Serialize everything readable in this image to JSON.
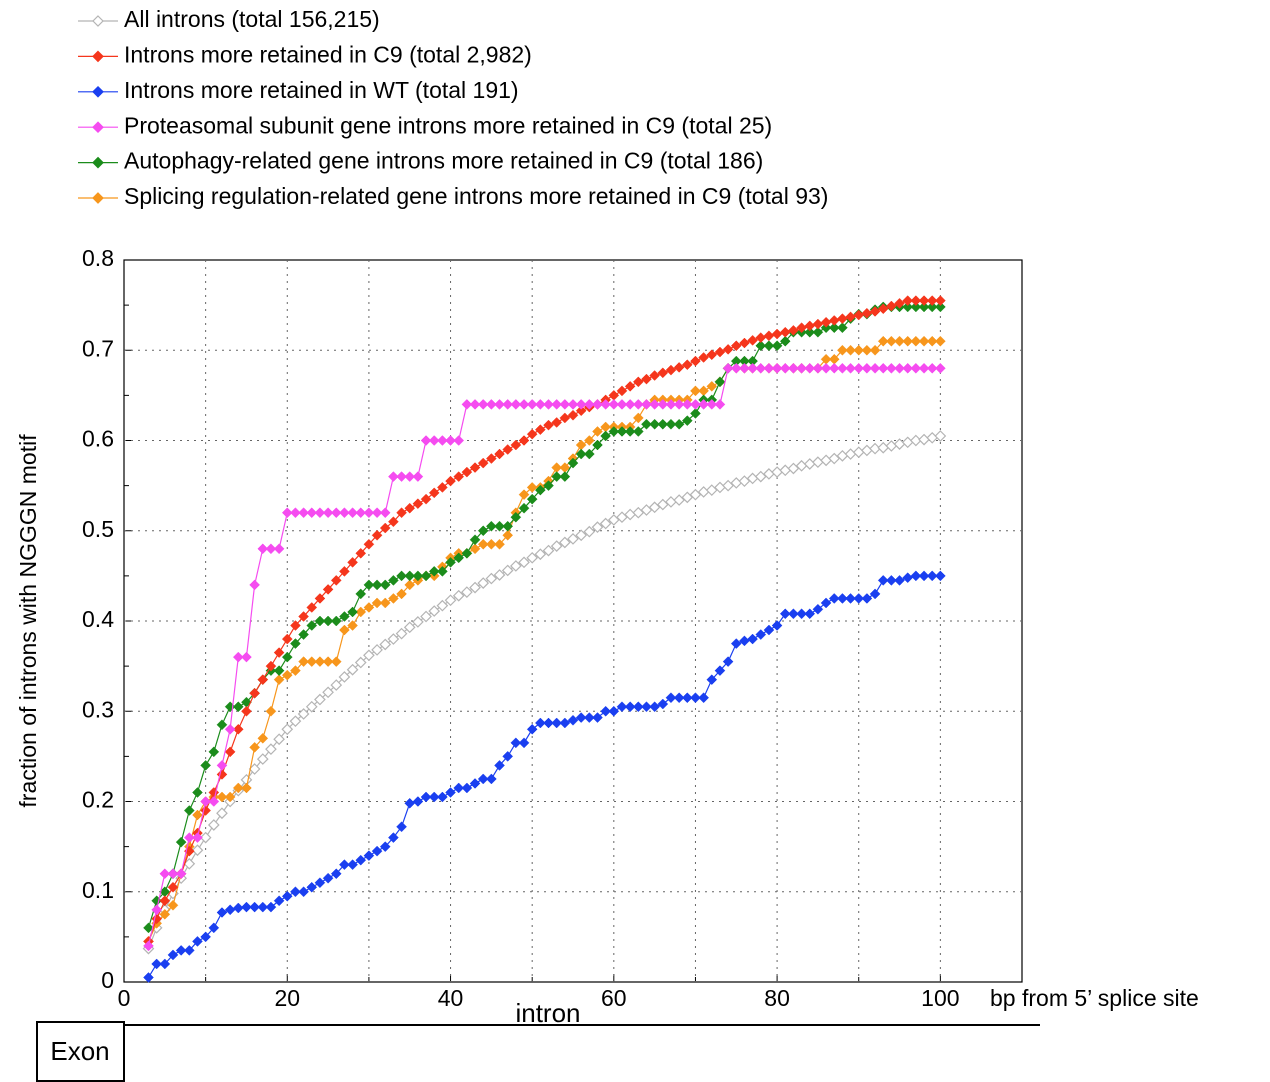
{
  "chart_data": {
    "type": "line",
    "legend": [
      "All introns (total 156,215)",
      "Introns more retained in C9 (total 2,982)",
      "Introns more retained in WT (total 191)",
      "Proteasomal subunit gene introns more retained in C9 (total 25)",
      "Autophagy-related gene introns more retained in C9 (total 186)",
      "Splicing regulation-related gene introns more retained in C9 (total 93)"
    ],
    "xlabel": "bp from 5’ splice site",
    "ylabel": "fraction of introns with NGGGN motif",
    "annotations": [
      "intron",
      "Exon"
    ],
    "xlim": [
      0,
      110
    ],
    "xticks": [
      0,
      20,
      40,
      60,
      80,
      100
    ],
    "ylim": [
      0,
      0.8
    ],
    "yticks": [
      0,
      0.1,
      0.2,
      0.3,
      0.4,
      0.5,
      0.6,
      0.7,
      0.8
    ],
    "grid": true,
    "x": [
      3,
      4,
      5,
      6,
      7,
      8,
      9,
      10,
      11,
      12,
      13,
      14,
      15,
      16,
      17,
      18,
      19,
      20,
      21,
      22,
      23,
      24,
      25,
      26,
      27,
      28,
      29,
      30,
      31,
      32,
      33,
      34,
      35,
      36,
      37,
      38,
      39,
      40,
      41,
      42,
      43,
      44,
      45,
      46,
      47,
      48,
      49,
      50,
      51,
      52,
      53,
      54,
      55,
      56,
      57,
      58,
      59,
      60,
      61,
      62,
      63,
      64,
      65,
      66,
      67,
      68,
      69,
      70,
      71,
      72,
      73,
      74,
      75,
      76,
      77,
      78,
      79,
      80,
      81,
      82,
      83,
      84,
      85,
      86,
      87,
      88,
      89,
      90,
      91,
      92,
      93,
      94,
      95,
      96,
      97,
      98,
      99,
      100
    ],
    "series": [
      {
        "name": "All introns (total 156,215)",
        "color": "#b4b4b4",
        "hollow": true,
        "values": [
          0.037,
          0.06,
          0.08,
          0.098,
          0.115,
          0.131,
          0.146,
          0.16,
          0.174,
          0.187,
          0.2,
          0.212,
          0.224,
          0.236,
          0.247,
          0.258,
          0.269,
          0.28,
          0.289,
          0.297,
          0.305,
          0.313,
          0.321,
          0.329,
          0.338,
          0.346,
          0.354,
          0.362,
          0.368,
          0.374,
          0.38,
          0.386,
          0.393,
          0.399,
          0.405,
          0.411,
          0.417,
          0.423,
          0.428,
          0.432,
          0.437,
          0.442,
          0.447,
          0.451,
          0.456,
          0.461,
          0.465,
          0.47,
          0.474,
          0.478,
          0.483,
          0.487,
          0.491,
          0.495,
          0.499,
          0.504,
          0.508,
          0.512,
          0.515,
          0.518,
          0.52,
          0.523,
          0.526,
          0.529,
          0.532,
          0.534,
          0.537,
          0.54,
          0.543,
          0.545,
          0.548,
          0.55,
          0.553,
          0.555,
          0.558,
          0.56,
          0.563,
          0.565,
          0.567,
          0.569,
          0.572,
          0.574,
          0.576,
          0.578,
          0.58,
          0.583,
          0.585,
          0.587,
          0.589,
          0.591,
          0.592,
          0.594,
          0.596,
          0.598,
          0.6,
          0.601,
          0.603,
          0.605
        ]
      },
      {
        "name": "Introns more retained in C9 (total 2,982)",
        "color": "#f5361c",
        "values": [
          0.045,
          0.07,
          0.09,
          0.105,
          0.12,
          0.145,
          0.165,
          0.19,
          0.21,
          0.23,
          0.255,
          0.28,
          0.3,
          0.32,
          0.335,
          0.35,
          0.365,
          0.38,
          0.395,
          0.405,
          0.415,
          0.425,
          0.435,
          0.445,
          0.455,
          0.465,
          0.475,
          0.485,
          0.495,
          0.503,
          0.51,
          0.52,
          0.525,
          0.53,
          0.535,
          0.542,
          0.548,
          0.555,
          0.56,
          0.565,
          0.57,
          0.575,
          0.58,
          0.585,
          0.59,
          0.595,
          0.6,
          0.607,
          0.612,
          0.617,
          0.62,
          0.625,
          0.628,
          0.633,
          0.637,
          0.64,
          0.645,
          0.65,
          0.655,
          0.66,
          0.665,
          0.668,
          0.672,
          0.675,
          0.678,
          0.681,
          0.684,
          0.688,
          0.692,
          0.695,
          0.698,
          0.701,
          0.705,
          0.708,
          0.711,
          0.714,
          0.716,
          0.718,
          0.72,
          0.722,
          0.725,
          0.727,
          0.729,
          0.731,
          0.733,
          0.735,
          0.737,
          0.739,
          0.741,
          0.743,
          0.746,
          0.749,
          0.752,
          0.755,
          0.755,
          0.755,
          0.755,
          0.755
        ]
      },
      {
        "name": "Introns more retained in WT (total 191)",
        "color": "#1a3ff0",
        "values": [
          0.005,
          0.02,
          0.02,
          0.03,
          0.035,
          0.035,
          0.045,
          0.05,
          0.06,
          0.077,
          0.08,
          0.082,
          0.083,
          0.083,
          0.083,
          0.083,
          0.09,
          0.095,
          0.1,
          0.1,
          0.105,
          0.11,
          0.115,
          0.12,
          0.13,
          0.13,
          0.135,
          0.14,
          0.145,
          0.15,
          0.16,
          0.172,
          0.198,
          0.2,
          0.205,
          0.205,
          0.205,
          0.21,
          0.215,
          0.215,
          0.22,
          0.225,
          0.225,
          0.24,
          0.25,
          0.265,
          0.265,
          0.28,
          0.287,
          0.287,
          0.287,
          0.287,
          0.29,
          0.293,
          0.293,
          0.293,
          0.3,
          0.3,
          0.305,
          0.305,
          0.305,
          0.305,
          0.305,
          0.308,
          0.315,
          0.315,
          0.315,
          0.315,
          0.315,
          0.335,
          0.345,
          0.355,
          0.375,
          0.378,
          0.38,
          0.385,
          0.39,
          0.395,
          0.408,
          0.408,
          0.408,
          0.408,
          0.413,
          0.42,
          0.425,
          0.425,
          0.425,
          0.425,
          0.425,
          0.43,
          0.445,
          0.445,
          0.445,
          0.448,
          0.45,
          0.45,
          0.45,
          0.45
        ]
      },
      {
        "name": "Proteasomal subunit gene introns more retained in C9 (total 25)",
        "color": "#f54cf0",
        "values": [
          0.04,
          0.08,
          0.12,
          0.12,
          0.12,
          0.16,
          0.16,
          0.2,
          0.2,
          0.24,
          0.28,
          0.36,
          0.36,
          0.44,
          0.48,
          0.48,
          0.48,
          0.52,
          0.52,
          0.52,
          0.52,
          0.52,
          0.52,
          0.52,
          0.52,
          0.52,
          0.52,
          0.52,
          0.52,
          0.52,
          0.56,
          0.56,
          0.56,
          0.56,
          0.6,
          0.6,
          0.6,
          0.6,
          0.6,
          0.64,
          0.64,
          0.64,
          0.64,
          0.64,
          0.64,
          0.64,
          0.64,
          0.64,
          0.64,
          0.64,
          0.64,
          0.64,
          0.64,
          0.64,
          0.64,
          0.64,
          0.64,
          0.64,
          0.64,
          0.64,
          0.64,
          0.64,
          0.64,
          0.64,
          0.64,
          0.64,
          0.64,
          0.64,
          0.64,
          0.64,
          0.64,
          0.68,
          0.68,
          0.68,
          0.68,
          0.68,
          0.68,
          0.68,
          0.68,
          0.68,
          0.68,
          0.68,
          0.68,
          0.68,
          0.68,
          0.68,
          0.68,
          0.68,
          0.68,
          0.68,
          0.68,
          0.68,
          0.68,
          0.68,
          0.68,
          0.68,
          0.68,
          0.68
        ]
      },
      {
        "name": "Autophagy-related gene introns more retained in C9 (total 186)",
        "color": "#1b8c1b",
        "values": [
          0.06,
          0.09,
          0.1,
          0.12,
          0.155,
          0.19,
          0.21,
          0.24,
          0.255,
          0.285,
          0.305,
          0.305,
          0.31,
          0.32,
          0.335,
          0.345,
          0.345,
          0.36,
          0.375,
          0.385,
          0.395,
          0.4,
          0.4,
          0.4,
          0.405,
          0.41,
          0.43,
          0.44,
          0.44,
          0.44,
          0.445,
          0.45,
          0.45,
          0.45,
          0.45,
          0.455,
          0.455,
          0.465,
          0.47,
          0.475,
          0.49,
          0.5,
          0.505,
          0.505,
          0.505,
          0.515,
          0.525,
          0.535,
          0.545,
          0.55,
          0.56,
          0.56,
          0.575,
          0.585,
          0.585,
          0.595,
          0.605,
          0.61,
          0.61,
          0.61,
          0.61,
          0.618,
          0.618,
          0.618,
          0.618,
          0.618,
          0.622,
          0.63,
          0.645,
          0.645,
          0.665,
          0.68,
          0.688,
          0.688,
          0.688,
          0.705,
          0.705,
          0.705,
          0.71,
          0.72,
          0.72,
          0.72,
          0.72,
          0.725,
          0.725,
          0.725,
          0.735,
          0.74,
          0.74,
          0.745,
          0.748,
          0.748,
          0.748,
          0.748,
          0.748,
          0.748,
          0.748,
          0.748
        ]
      },
      {
        "name": "Splicing regulation-related gene introns more retained in C9 (total 93)",
        "color": "#f7961c",
        "values": [
          0.045,
          0.065,
          0.075,
          0.085,
          0.12,
          0.15,
          0.185,
          0.2,
          0.205,
          0.205,
          0.205,
          0.215,
          0.215,
          0.26,
          0.27,
          0.3,
          0.335,
          0.34,
          0.345,
          0.355,
          0.355,
          0.355,
          0.355,
          0.355,
          0.39,
          0.395,
          0.41,
          0.415,
          0.42,
          0.42,
          0.425,
          0.43,
          0.44,
          0.445,
          0.45,
          0.45,
          0.46,
          0.47,
          0.475,
          0.475,
          0.48,
          0.485,
          0.485,
          0.485,
          0.495,
          0.52,
          0.54,
          0.548,
          0.548,
          0.555,
          0.57,
          0.57,
          0.58,
          0.595,
          0.6,
          0.61,
          0.615,
          0.615,
          0.615,
          0.615,
          0.625,
          0.64,
          0.645,
          0.645,
          0.645,
          0.645,
          0.645,
          0.655,
          0.655,
          0.66,
          0.665,
          0.68,
          0.68,
          0.68,
          0.68,
          0.68,
          0.68,
          0.68,
          0.68,
          0.68,
          0.68,
          0.68,
          0.68,
          0.69,
          0.69,
          0.7,
          0.7,
          0.7,
          0.7,
          0.7,
          0.71,
          0.71,
          0.71,
          0.71,
          0.71,
          0.71,
          0.71,
          0.71
        ]
      }
    ]
  }
}
